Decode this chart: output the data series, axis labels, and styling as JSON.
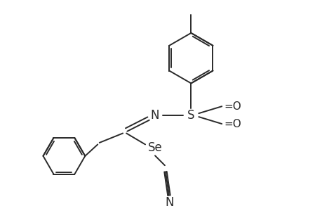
{
  "bg_color": "#ffffff",
  "line_color": "#2a2a2a",
  "line_width": 1.4,
  "figsize": [
    4.6,
    3.0
  ],
  "dpi": 100,
  "xlim": [
    0,
    9.2
  ],
  "ylim": [
    0,
    6.0
  ]
}
